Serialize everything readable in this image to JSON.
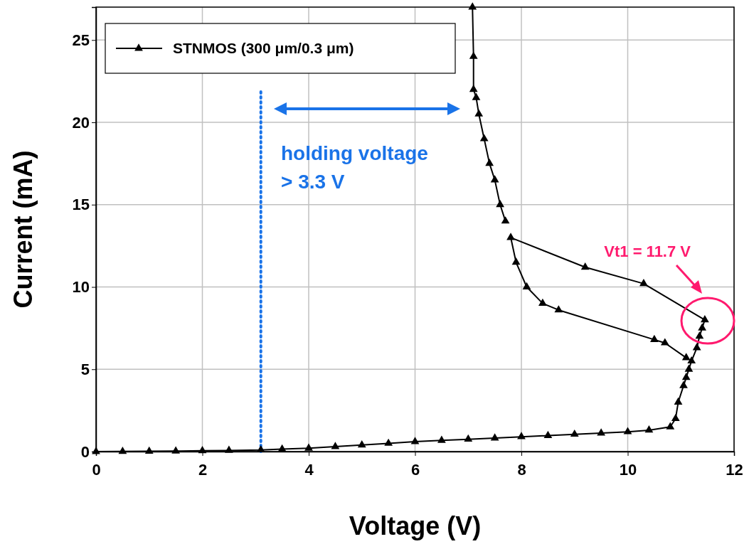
{
  "chart_data": {
    "type": "line",
    "xlabel": "Voltage (V)",
    "ylabel": "Current (mA)",
    "xlim": [
      0,
      12
    ],
    "xticks": [
      0,
      2,
      4,
      6,
      8,
      10,
      12
    ],
    "ylim": [
      0,
      27
    ],
    "yticks": [
      0,
      5,
      10,
      15,
      20,
      25
    ],
    "grid": true,
    "legend": "top left",
    "marker": "triangle",
    "line_style": "solid",
    "series": [
      {
        "name": "STNMOS (300 μm/0.3 μm)",
        "color": "#000000",
        "x": [
          0,
          0.5,
          1,
          1.5,
          2,
          2.5,
          3.1,
          3.5,
          4,
          4.5,
          5,
          5.5,
          6,
          6.5,
          7,
          7.5,
          8,
          8.5,
          9,
          9.5,
          10,
          10.4,
          10.8,
          10.9,
          10.95,
          11.05,
          11.1,
          11.15,
          11.2,
          11.3,
          11.35,
          11.4,
          11.45,
          10.3,
          9.2,
          7.8,
          7.9,
          8.1,
          8.4,
          8.7,
          10.5,
          10.7,
          11.1,
          7.75,
          7.7,
          7.6,
          7.5,
          7.4,
          7.3,
          7.2,
          7.15,
          7.1,
          7.1,
          7.08
        ],
        "values": [
          0,
          0.01,
          0.02,
          0.03,
          0.05,
          0.07,
          0.1,
          0.15,
          0.2,
          0.3,
          0.4,
          0.5,
          0.6,
          0.68,
          0.75,
          0.82,
          0.9,
          0.97,
          1.05,
          1.12,
          1.2,
          1.3,
          1.5,
          2,
          3,
          4,
          4.5,
          5,
          5.5,
          6.3,
          7,
          7.5,
          8,
          10.2,
          11.2,
          13,
          11.5,
          10,
          9,
          8.6,
          6.8,
          6.6,
          5.7,
          null,
          14,
          15,
          16.5,
          17.5,
          19,
          20.5,
          21.5,
          22,
          24,
          27
        ]
      }
    ],
    "ref_lines": [
      {
        "axis": "x",
        "value": 3.1,
        "color": "#1a73e8",
        "line_style": "dotted"
      }
    ],
    "annotations": [
      "Vt1 = 11.7 V",
      "holding voltage",
      "> 3.3 V"
    ]
  }
}
